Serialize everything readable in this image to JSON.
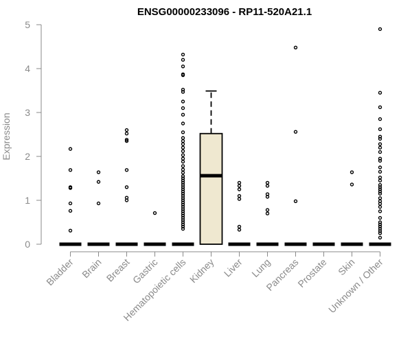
{
  "chart_data": {
    "type": "box",
    "title": "ENSG00000233096 - RP11-520A21.1",
    "xlabel": "",
    "ylabel": "Expression",
    "ylim": [
      0,
      5
    ],
    "yticks": [
      0,
      1,
      2,
      3,
      4,
      5
    ],
    "box_fill": "#efe8d0",
    "categories": [
      "Bladder",
      "Brain",
      "Breast",
      "Gastric",
      "Hematopoietic cells",
      "Kidney",
      "Liver",
      "Lung",
      "Pancreas",
      "Prostate",
      "Skin",
      "Unknown / Other"
    ],
    "boxes": [
      {
        "q1": 0,
        "median": 0,
        "q3": 0,
        "whisker_low": 0,
        "whisker_high": 0,
        "outliers": [
          2.17,
          1.69,
          1.3,
          1.28,
          0.93,
          0.76,
          0.31
        ]
      },
      {
        "q1": 0,
        "median": 0,
        "q3": 0,
        "whisker_low": 0,
        "whisker_high": 0,
        "outliers": [
          1.64,
          1.42,
          0.93
        ]
      },
      {
        "q1": 0,
        "median": 0,
        "q3": 0,
        "whisker_low": 0,
        "whisker_high": 0,
        "outliers": [
          2.6,
          2.52,
          2.38,
          2.35,
          1.69,
          1.3,
          1.06,
          1.0
        ]
      },
      {
        "q1": 0,
        "median": 0,
        "q3": 0,
        "whisker_low": 0,
        "whisker_high": 0,
        "outliers": [
          0.71
        ]
      },
      {
        "q1": 0,
        "median": 0,
        "q3": 0,
        "whisker_low": 0,
        "whisker_high": 0,
        "outliers": [
          4.32,
          4.2,
          4.05,
          3.87,
          3.85,
          3.52,
          3.47,
          3.25,
          3.1,
          2.95,
          2.75,
          2.55,
          2.42,
          2.35,
          2.28,
          2.2,
          2.12,
          2.03,
          1.95,
          1.88,
          1.78,
          1.7,
          1.63,
          1.55,
          1.5,
          1.45,
          1.4,
          1.35,
          1.3,
          1.25,
          1.2,
          1.15,
          1.1,
          1.05,
          1.0,
          0.95,
          0.9,
          0.85,
          0.8,
          0.75,
          0.7,
          0.65,
          0.6,
          0.55,
          0.5,
          0.45,
          0.4,
          0.35
        ]
      },
      {
        "q1": 0,
        "median": 1.56,
        "q3": 2.52,
        "whisker_low": 0,
        "whisker_high": 3.49,
        "outliers": []
      },
      {
        "q1": 0,
        "median": 0,
        "q3": 0,
        "whisker_low": 0,
        "whisker_high": 0,
        "outliers": [
          1.4,
          1.33,
          1.25,
          1.1,
          1.03,
          0.4,
          0.33
        ]
      },
      {
        "q1": 0,
        "median": 0,
        "q3": 0,
        "whisker_low": 0,
        "whisker_high": 0,
        "outliers": [
          1.4,
          1.33,
          1.14,
          1.08,
          0.78,
          0.7
        ]
      },
      {
        "q1": 0,
        "median": 0,
        "q3": 0,
        "whisker_low": 0,
        "whisker_high": 0,
        "outliers": [
          4.48,
          2.56,
          0.98
        ]
      },
      {
        "q1": 0,
        "median": 0,
        "q3": 0,
        "whisker_low": 0,
        "whisker_high": 0,
        "outliers": []
      },
      {
        "q1": 0,
        "median": 0,
        "q3": 0,
        "whisker_low": 0,
        "whisker_high": 0,
        "outliers": [
          1.64,
          1.36
        ]
      },
      {
        "q1": 0,
        "median": 0,
        "q3": 0,
        "whisker_low": 0,
        "whisker_high": 0,
        "outliers": [
          4.9,
          3.45,
          3.12,
          2.85,
          2.62,
          2.45,
          2.4,
          2.28,
          2.2,
          2.1,
          1.95,
          1.9,
          1.75,
          1.65,
          1.52,
          1.45,
          1.35,
          1.3,
          1.25,
          1.2,
          1.15,
          1.05,
          0.98,
          0.92,
          0.85,
          0.75,
          0.6,
          0.5,
          0.45,
          0.4,
          0.35,
          0.3,
          0.25,
          0.15
        ]
      }
    ]
  }
}
